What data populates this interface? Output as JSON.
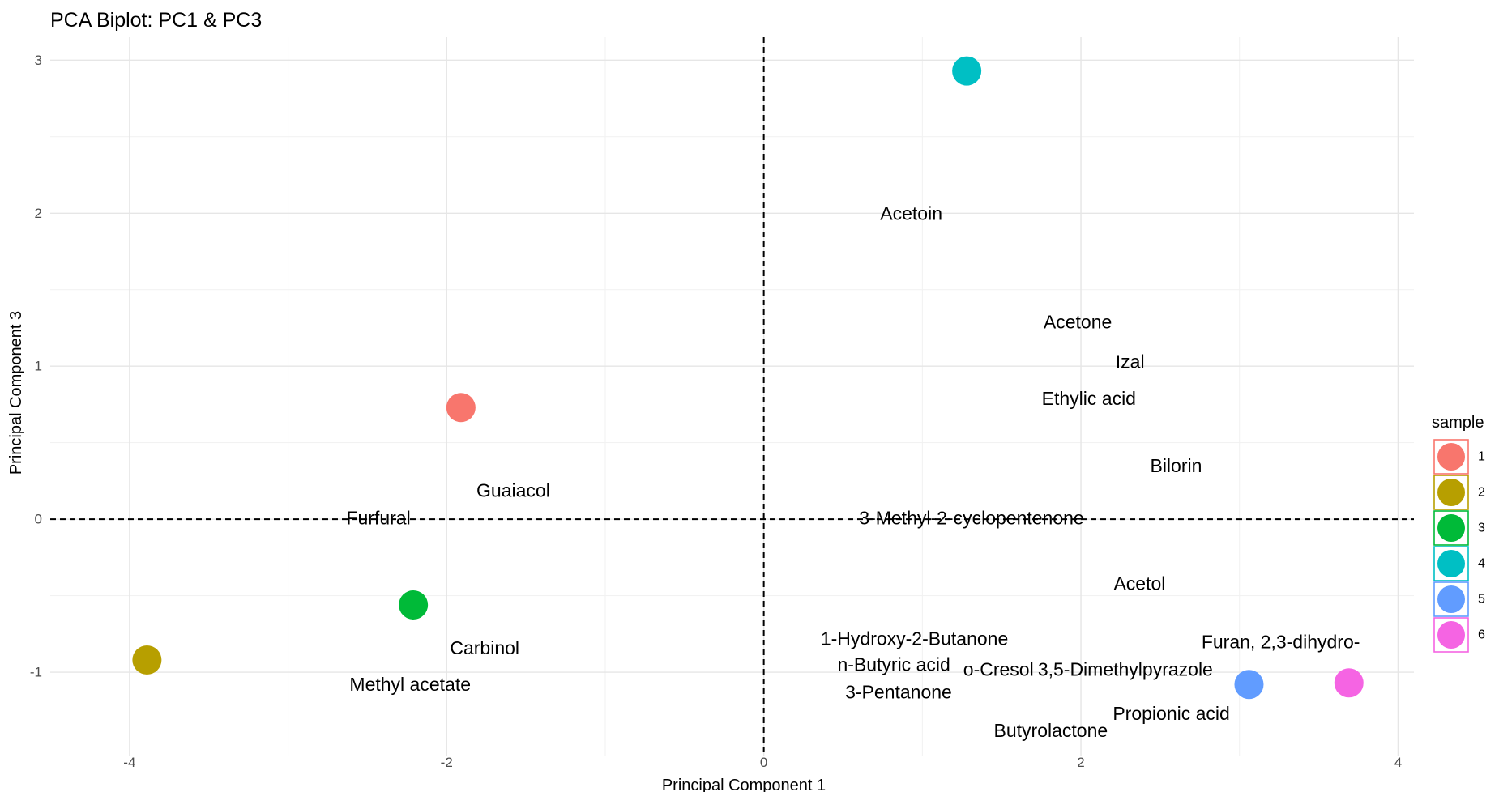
{
  "chart_data": {
    "type": "scatter",
    "title": "PCA Biplot: PC1 & PC3",
    "xlabel": "Principal Component 1",
    "ylabel": "Principal Component 3",
    "xlim": [
      -4.5,
      4.1
    ],
    "ylim": [
      -1.55,
      3.15
    ],
    "xticks": [
      -4,
      -2,
      0,
      2,
      4
    ],
    "yticks": [
      -1,
      0,
      1,
      2,
      3
    ],
    "xtick_labels": [
      "-4",
      "-2",
      "0",
      "2",
      "4"
    ],
    "ytick_labels": [
      "-1",
      "0",
      "1",
      "2",
      "3"
    ],
    "grid": true,
    "reference_lines": {
      "x": 0,
      "y": 0,
      "style": "dashed"
    },
    "legend": {
      "title": "sample",
      "placement": "right",
      "entries": [
        "1",
        "2",
        "3",
        "4",
        "5",
        "6"
      ]
    },
    "points": [
      {
        "sample": "1",
        "x": -1.91,
        "y": 0.73,
        "color": "#F8766D"
      },
      {
        "sample": "2",
        "x": -3.89,
        "y": -0.92,
        "color": "#B79F00"
      },
      {
        "sample": "3",
        "x": -2.21,
        "y": -0.56,
        "color": "#00BA38"
      },
      {
        "sample": "4",
        "x": 1.28,
        "y": 2.93,
        "color": "#00BFC4"
      },
      {
        "sample": "5",
        "x": 3.06,
        "y": -1.08,
        "color": "#619CFF"
      },
      {
        "sample": "6",
        "x": 3.69,
        "y": -1.07,
        "color": "#F564E3"
      }
    ],
    "variable_labels": [
      {
        "text": "Acetoin",
        "x": 0.93,
        "y": 2.0
      },
      {
        "text": "Acetone",
        "x": 1.98,
        "y": 1.29
      },
      {
        "text": "Izal",
        "x": 2.31,
        "y": 1.03
      },
      {
        "text": "Ethylic acid",
        "x": 2.05,
        "y": 0.79
      },
      {
        "text": "Bilorin",
        "x": 2.6,
        "y": 0.35
      },
      {
        "text": "Guaiacol",
        "x": -1.58,
        "y": 0.19
      },
      {
        "text": "Furfural",
        "x": -2.43,
        "y": 0.01
      },
      {
        "text": "3-Methyl-2-cyclopentenone",
        "x": 1.31,
        "y": 0.01
      },
      {
        "text": "Acetol",
        "x": 2.37,
        "y": -0.42
      },
      {
        "text": "1-Hydroxy-2-Butanone",
        "x": 0.95,
        "y": -0.78
      },
      {
        "text": "Carbinol",
        "x": -1.76,
        "y": -0.84
      },
      {
        "text": "n-Butyric acid",
        "x": 0.82,
        "y": -0.95
      },
      {
        "text": "o-Cresol",
        "x": 1.48,
        "y": -0.98
      },
      {
        "text": "3,5-Dimethylpyrazole",
        "x": 2.28,
        "y": -0.98
      },
      {
        "text": "Furan, 2,3-dihydro-",
        "x": 3.26,
        "y": -0.8
      },
      {
        "text": "Methyl acetate",
        "x": -2.23,
        "y": -1.08
      },
      {
        "text": "3-Pentanone",
        "x": 0.85,
        "y": -1.13
      },
      {
        "text": "Propionic acid",
        "x": 2.57,
        "y": -1.27
      },
      {
        "text": "Butyrolactone",
        "x": 1.81,
        "y": -1.38
      }
    ]
  }
}
